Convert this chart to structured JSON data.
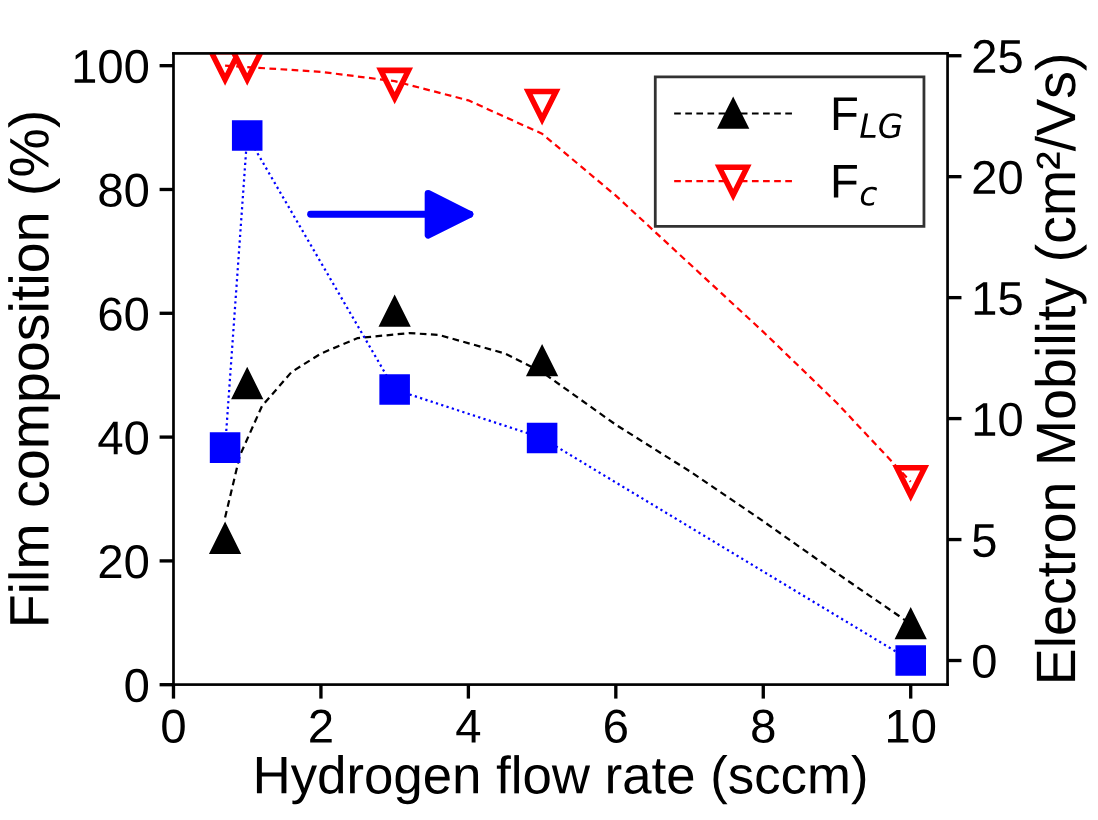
{
  "chart_data": {
    "type": "scatter",
    "xlabel": "Hydrogen flow rate (sccm)",
    "ylabel": "Film composition (%)",
    "y2label": "Electron Mobility (cm²/Vs)",
    "xlim": [
      0,
      10.5
    ],
    "xticks": [
      0,
      2,
      4,
      6,
      8,
      10
    ],
    "ylim": [
      0,
      102
    ],
    "yticks": [
      0,
      20,
      40,
      60,
      80,
      100
    ],
    "y2lim": [
      -1,
      25.1
    ],
    "y2ticks": [
      0,
      5,
      10,
      15,
      20,
      25
    ],
    "grid": false,
    "legend": "top right",
    "series": [
      {
        "name": "F$_{LG}$",
        "marker": "triangle",
        "color": "#000000",
        "x": [
          0.7,
          1,
          3,
          5,
          10
        ],
        "values": [
          23.6,
          48.6,
          60.3,
          52.3,
          9.8
        ]
      },
      {
        "type": "line",
        "line_style": "dashed",
        "marker": "none",
        "color": "#000000",
        "x": [
          0.7,
          0.9,
          1.2,
          1.6,
          2,
          2.5,
          3.2,
          3.6,
          4.5,
          5,
          6,
          7,
          8,
          9,
          10
        ],
        "values": [
          27,
          37,
          45,
          50.5,
          53.5,
          56,
          56.8,
          56.5,
          53.5,
          50.5,
          42,
          34.5,
          26.4,
          18,
          9.8
        ]
      },
      {
        "name": "F$_{c}$",
        "marker": "triangle_down_open",
        "color": "#ff0000",
        "x": [
          0.7,
          1,
          3,
          5,
          10
        ],
        "values": [
          100,
          100,
          97,
          93.6,
          32.8
        ]
      },
      {
        "type": "line",
        "line_style": "dashed",
        "marker": "none",
        "color": "#ff0000",
        "x": [
          0.7,
          2,
          3,
          4,
          5,
          6,
          7,
          8,
          9,
          10
        ],
        "values": [
          100,
          99,
          97.5,
          94.4,
          89,
          79,
          68,
          57,
          45.5,
          32.8
        ]
      },
      {
        "type": "line",
        "line_style": "dotted",
        "marker": "square",
        "color": "#0000ff",
        "axis": "y2",
        "x": [
          0.7,
          1,
          3,
          5,
          10
        ],
        "values": [
          8.8,
          21.7,
          11.2,
          9.2,
          0
        ]
      }
    ]
  }
}
